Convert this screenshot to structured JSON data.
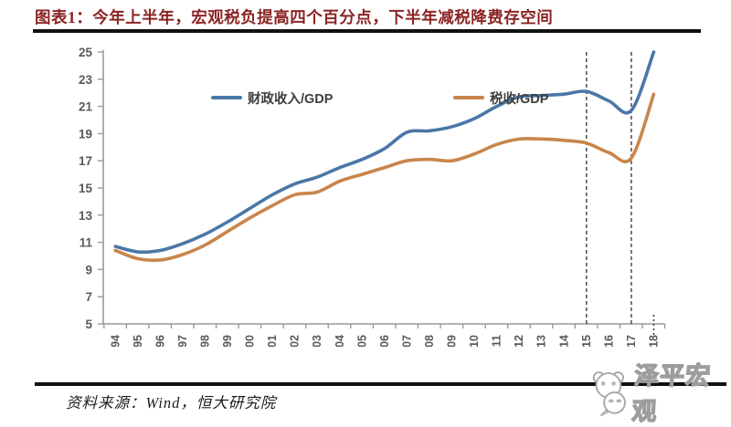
{
  "header": {
    "title": "图表1：今年上半年，宏观税负提高四个百分点，下半年减税降费存空间"
  },
  "footer": {
    "source": "资料来源：Wind，恒大研究院",
    "watermark": "泽平宏观",
    "watermark_icon": "panda-chat-icon"
  },
  "chart_data": {
    "type": "line",
    "title": "",
    "xlabel": "",
    "ylabel": "",
    "ylim": [
      5,
      25
    ],
    "yticks": [
      5,
      7,
      9,
      11,
      13,
      15,
      17,
      19,
      21,
      23,
      25
    ],
    "grid": false,
    "legend_position": "top-center",
    "axis_color": "#9a9a9a",
    "tick_label_color": "#595959",
    "categories": [
      1994,
      1995,
      1996,
      1997,
      1998,
      1999,
      2000,
      2001,
      2002,
      2003,
      2004,
      2005,
      2006,
      2007,
      2008,
      2009,
      2010,
      2011,
      2012,
      2013,
      2014,
      2015,
      2016,
      2017,
      2018
    ],
    "series": [
      {
        "name": "财政收入/GDP",
        "color": "#4a77a8",
        "values": [
          10.7,
          10.3,
          10.4,
          10.9,
          11.6,
          12.5,
          13.5,
          14.5,
          15.3,
          15.8,
          16.5,
          17.1,
          17.9,
          19.1,
          19.2,
          19.5,
          20.1,
          21.0,
          21.7,
          21.8,
          21.9,
          22.1,
          21.4,
          20.7,
          25.0
        ]
      },
      {
        "name": "税收/GDP",
        "color": "#c9854c",
        "values": [
          10.4,
          9.8,
          9.7,
          10.1,
          10.8,
          11.8,
          12.8,
          13.7,
          14.5,
          14.7,
          15.5,
          16.0,
          16.5,
          17.0,
          17.1,
          17.0,
          17.5,
          18.2,
          18.6,
          18.6,
          18.5,
          18.3,
          17.6,
          17.2,
          21.9
        ]
      }
    ],
    "annotations": {
      "dashed_vlines_years": [
        2015,
        2017
      ],
      "dotted_axis_mark_year": 2018
    }
  }
}
